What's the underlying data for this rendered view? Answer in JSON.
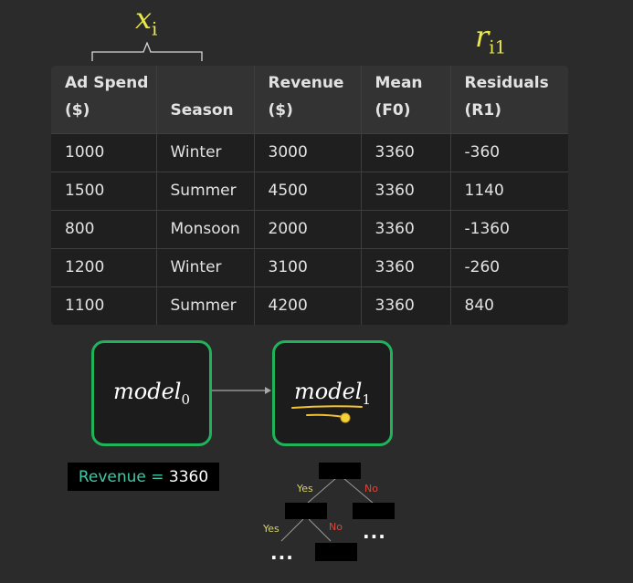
{
  "annotations": {
    "features_label": {
      "base": "x",
      "subscript": "i"
    },
    "residual_label": {
      "base": "r",
      "subscript": "i1"
    }
  },
  "table": {
    "headers": [
      {
        "line1": "Ad Spend",
        "line2": "($)"
      },
      {
        "line1": "",
        "line2": "Season"
      },
      {
        "line1": "Revenue",
        "line2": "($)"
      },
      {
        "line1": "Mean",
        "line2": "(F0)"
      },
      {
        "line1": "Residuals",
        "line2": "(R1)"
      }
    ],
    "rows": [
      [
        "1000",
        "Winter",
        "3000",
        "3360",
        "-360"
      ],
      [
        "1500",
        "Summer",
        "4500",
        "3360",
        "1140"
      ],
      [
        "800",
        "Monsoon",
        "2000",
        "3360",
        "-1360"
      ],
      [
        "1200",
        "Winter",
        "3100",
        "3360",
        "-260"
      ],
      [
        "1100",
        "Summer",
        "4200",
        "3360",
        "840"
      ]
    ]
  },
  "models": [
    {
      "base": "model",
      "subscript": "0"
    },
    {
      "base": "model",
      "subscript": "1"
    }
  ],
  "prediction": {
    "label": "Revenue = ",
    "value": "3360"
  },
  "tree": {
    "yes_label": "Yes",
    "no_label": "No",
    "ellipsis": "...",
    "colors": {
      "yes": "#d6d36a",
      "no": "#e0443a",
      "node": "#000000",
      "edge": "#9a9a9a"
    }
  },
  "colors": {
    "background": "#2b2b2b",
    "annotation": "#e8e84a",
    "model_border": "#1fb35a",
    "prediction_label": "#3fc8a6",
    "highlight": "#f2c230"
  }
}
